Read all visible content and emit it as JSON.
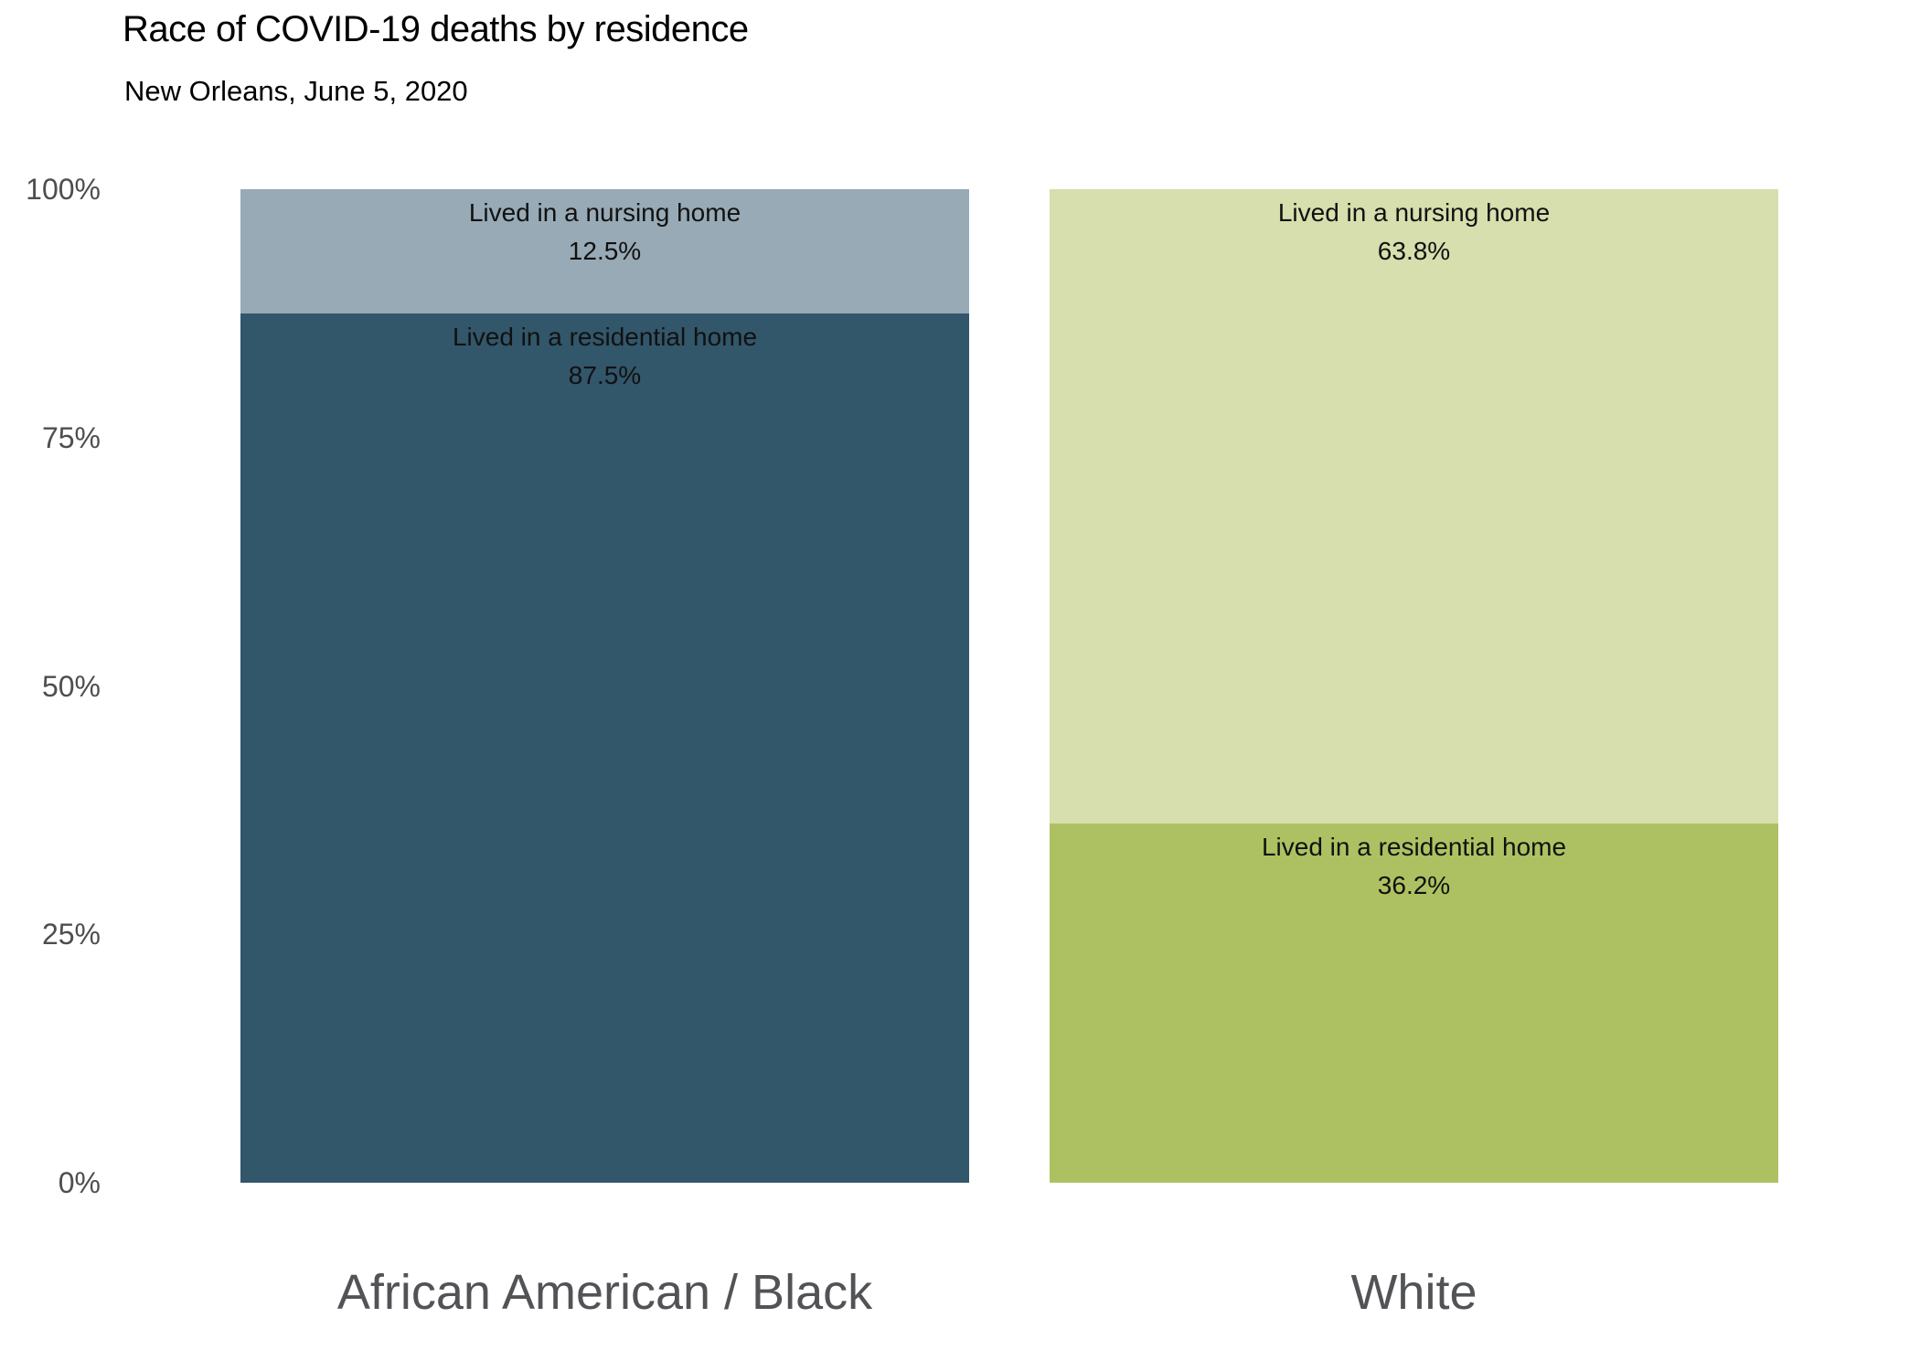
{
  "colors": {
    "background": "#ffffff",
    "title_text": "#000000",
    "axis_tick_text": "#4c4e50",
    "category_label_text": "#515356",
    "bar_label_text": "#111111",
    "aa_nursing": "#97aab5",
    "aa_residential": "#32566a",
    "white_nursing": "#d6dfad",
    "white_residential": "#aec162"
  },
  "chart_data": {
    "type": "bar",
    "variant": "100-percent-stacked-column",
    "title": "Race of COVID-19 deaths by residence",
    "subtitle": "New Orleans, June 5, 2020",
    "categories": [
      "African American / Black",
      "White"
    ],
    "series": [
      {
        "name": "Lived in a nursing home",
        "values": [
          12.5,
          63.8
        ],
        "value_labels": [
          "12.5%",
          "63.8%"
        ],
        "colors": [
          "#97aab5",
          "#d6dfad"
        ]
      },
      {
        "name": "Lived in a residential home",
        "values": [
          87.5,
          36.2
        ],
        "value_labels": [
          "87.5%",
          "36.2%"
        ],
        "colors": [
          "#32566a",
          "#aec162"
        ]
      }
    ],
    "xlabel": "",
    "ylabel": "",
    "ylim": [
      0,
      100
    ],
    "yticks": [
      {
        "value": 100,
        "label": "100%"
      },
      {
        "value": 75,
        "label": "75%"
      },
      {
        "value": 50,
        "label": "50%"
      },
      {
        "value": 25,
        "label": "25%"
      },
      {
        "value": 0,
        "label": "0%"
      }
    ],
    "grid": false,
    "legend_position": "none",
    "label_placement": "inside-top-of-segment"
  }
}
